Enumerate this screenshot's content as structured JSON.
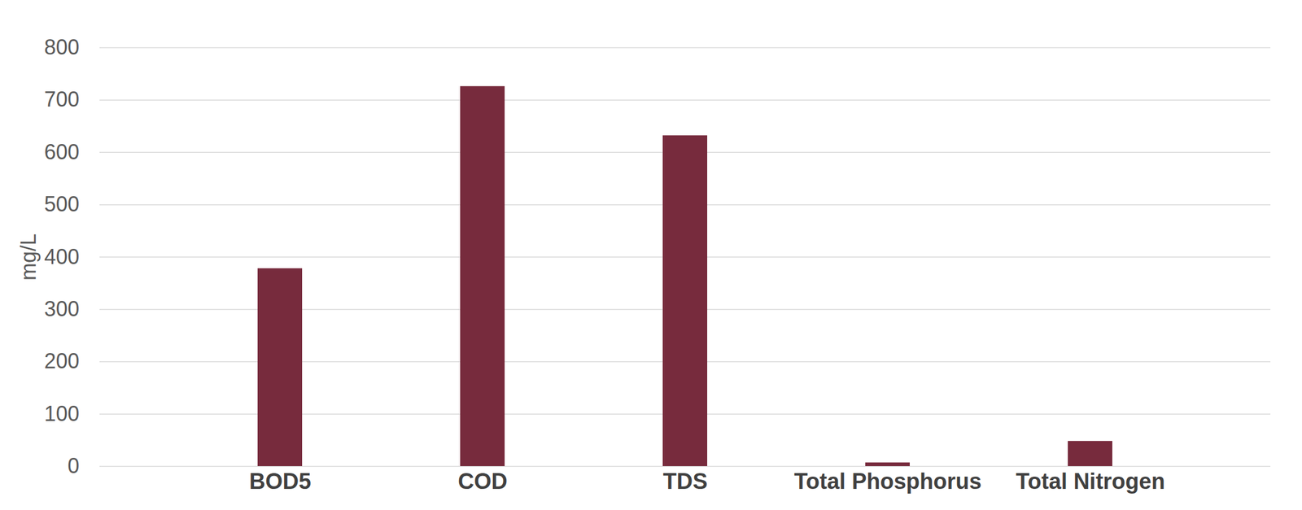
{
  "chart_data": {
    "type": "bar",
    "categories": [
      "BOD5",
      "COD",
      "TDS",
      "Total Phosphorus",
      "Total Nitrogen"
    ],
    "values": [
      378,
      726,
      632,
      7,
      48
    ],
    "color": "#772B3D",
    "ylabel": "mg/L",
    "ylim": [
      0,
      800
    ],
    "yticks": [
      0,
      100,
      200,
      300,
      400,
      500,
      600,
      700,
      800
    ],
    "grid": true
  }
}
